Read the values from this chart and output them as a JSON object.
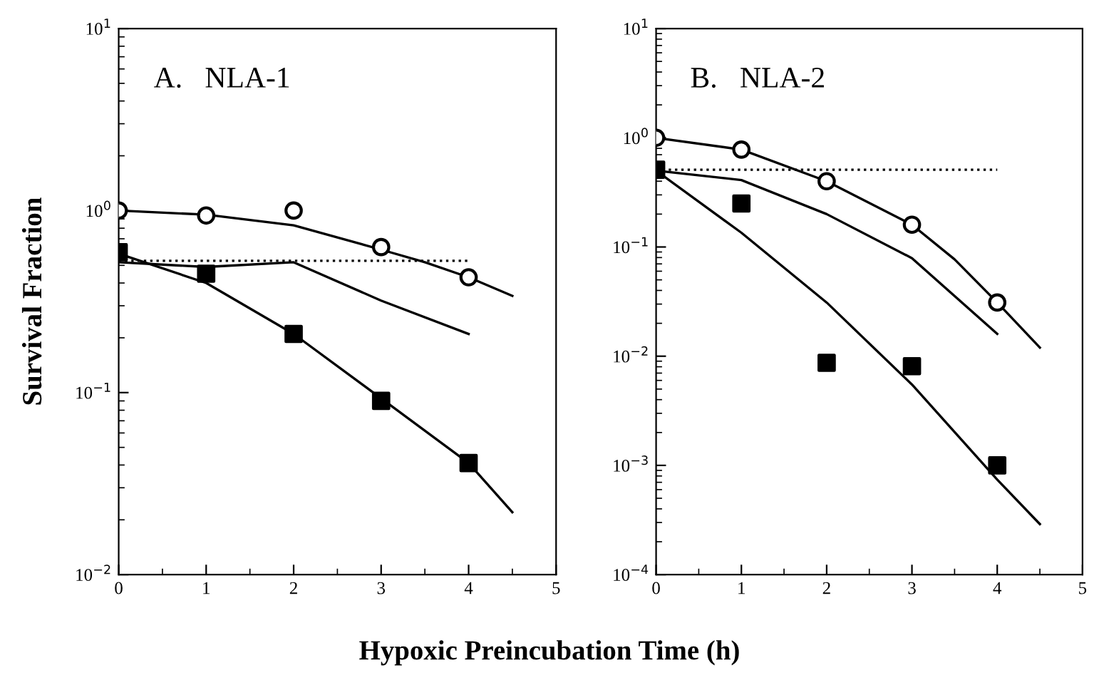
{
  "chart_data": [
    {
      "type": "scatter",
      "title": "A.   NLA-1",
      "ylabel": "Survival Fraction",
      "xlabel": "Hypoxic Preincubation Time (h)",
      "log": "y",
      "xlim": [
        0,
        5
      ],
      "xticks": [
        0,
        1,
        2,
        3,
        4,
        5
      ],
      "ylim": [
        0.01,
        10
      ],
      "yticks": [
        {
          "value": 0.01,
          "label": "10$^{−2}$"
        },
        {
          "value": 0.1,
          "label": "10$^{−1}$"
        },
        {
          "value": 1,
          "label": "10$^{0}$"
        },
        {
          "value": 10,
          "label": "10$^{1}$"
        }
      ],
      "grid": false,
      "series": [
        {
          "type": "line",
          "color": "#000000",
          "marker": "none",
          "line_style": "solid",
          "x": [
            0,
            1,
            2,
            3,
            3.5,
            4,
            4.5
          ],
          "values": [
            1.0,
            0.95,
            0.83,
            0.61,
            0.52,
            0.43,
            0.34
          ]
        },
        {
          "type": "line",
          "color": "#000000",
          "marker": "none",
          "line_style": "solid",
          "x": [
            0,
            1,
            2,
            3,
            4,
            4.5
          ],
          "values": [
            0.58,
            0.4,
            0.21,
            0.093,
            0.041,
            0.022
          ]
        },
        {
          "type": "line",
          "color": "#000000",
          "marker": "none",
          "line_style": "solid",
          "x": [
            0,
            1,
            2,
            3,
            4
          ],
          "values": [
            0.52,
            0.49,
            0.52,
            0.32,
            0.21
          ]
        },
        {
          "type": "line",
          "color": "#000000",
          "marker": "none",
          "line_style": "dotted",
          "x": [
            0,
            4
          ],
          "values": [
            0.53,
            0.53
          ]
        },
        {
          "color": "#000000",
          "marker": "circle",
          "x": [
            0,
            1,
            2,
            3,
            4
          ],
          "values": [
            1.0,
            0.94,
            1.0,
            0.63,
            0.43
          ]
        },
        {
          "color": "#000000",
          "marker": "square",
          "x": [
            0,
            1,
            2,
            3,
            4
          ],
          "values": [
            0.59,
            0.45,
            0.21,
            0.09,
            0.041
          ]
        }
      ]
    },
    {
      "type": "scatter",
      "title": "B.   NLA-2",
      "log": "y",
      "xlim": [
        0,
        5
      ],
      "xticks": [
        0,
        1,
        2,
        3,
        4,
        5
      ],
      "ylim": [
        0.0001,
        10
      ],
      "yticks": [
        {
          "value": 0.0001,
          "label": "10$^{−4}$"
        },
        {
          "value": 0.001,
          "label": "10$^{−3}$"
        },
        {
          "value": 0.01,
          "label": "10$^{−2}$"
        },
        {
          "value": 0.1,
          "label": "10$^{−1}$"
        },
        {
          "value": 1,
          "label": "10$^{0}$"
        },
        {
          "value": 10,
          "label": "10$^{1}$"
        }
      ],
      "grid": false,
      "series": [
        {
          "type": "line",
          "color": "#000000",
          "marker": "none",
          "line_style": "solid",
          "x": [
            0,
            1,
            2,
            3,
            3.5,
            4,
            4.5
          ],
          "values": [
            1.0,
            0.78,
            0.4,
            0.16,
            0.077,
            0.031,
            0.012
          ]
        },
        {
          "type": "line",
          "color": "#000000",
          "marker": "none",
          "line_style": "solid",
          "x": [
            0,
            1,
            2,
            3,
            4,
            4.5
          ],
          "values": [
            0.5,
            0.135,
            0.031,
            0.0055,
            0.00074,
            0.00029
          ]
        },
        {
          "type": "line",
          "color": "#000000",
          "marker": "none",
          "line_style": "solid",
          "x": [
            0,
            1,
            2,
            3,
            4
          ],
          "values": [
            0.5,
            0.41,
            0.2,
            0.079,
            0.016
          ]
        },
        {
          "type": "line",
          "color": "#000000",
          "marker": "none",
          "line_style": "dotted",
          "x": [
            0,
            4
          ],
          "values": [
            0.51,
            0.51
          ]
        },
        {
          "color": "#000000",
          "marker": "circle",
          "x": [
            0,
            1,
            2,
            3,
            4
          ],
          "values": [
            1.0,
            0.78,
            0.4,
            0.16,
            0.031
          ]
        },
        {
          "color": "#000000",
          "marker": "square",
          "x": [
            0,
            1,
            2,
            3,
            4
          ],
          "values": [
            0.51,
            0.25,
            0.0087,
            0.0081,
            0.001
          ]
        }
      ]
    }
  ]
}
